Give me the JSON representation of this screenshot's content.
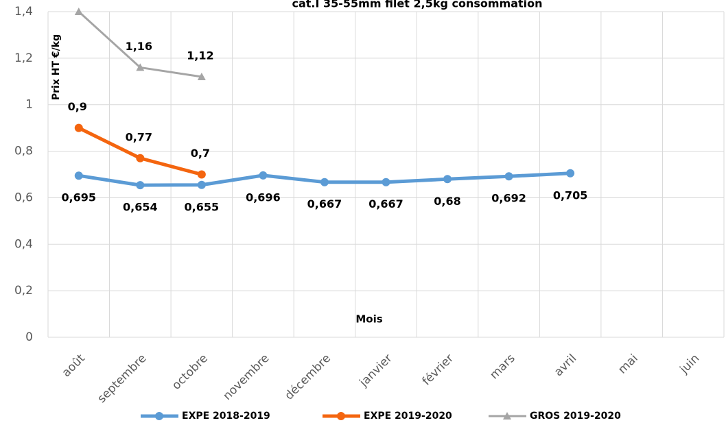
{
  "chart_data": {
    "type": "line",
    "title": "cat.I 35-55mm filet 2,5kg consommation",
    "y_label": "Prix HT €/kg",
    "x_label": "Mois",
    "categories": [
      "août",
      "septembre",
      "octobre",
      "novembre",
      "décembre",
      "janvier",
      "février",
      "mars",
      "avril",
      "mai",
      "juin"
    ],
    "series": [
      {
        "name": "EXPE 2018-2019",
        "color": "#5b9bd5",
        "marker": "circle",
        "values": [
          0.695,
          0.654,
          0.655,
          0.696,
          0.667,
          0.667,
          0.68,
          0.692,
          0.705,
          null,
          null
        ],
        "value_labels": [
          "0,695",
          "0,654",
          "0,655",
          "0,696",
          "0,667",
          "0,667",
          "0,68",
          "0,692",
          "0,705",
          null,
          null
        ]
      },
      {
        "name": "EXPE 2019-2020",
        "color": "#f4650f",
        "marker": "circle",
        "values": [
          0.9,
          0.77,
          0.7,
          null,
          null,
          null,
          null,
          null,
          null,
          null,
          null
        ],
        "value_labels": [
          "0,9",
          "0,77",
          "0,7",
          null,
          null,
          null,
          null,
          null,
          null,
          null,
          null
        ]
      },
      {
        "name": "GROS 2019-2020",
        "color": "#a5a5a5",
        "marker": "triangle",
        "values": [
          1.4,
          1.16,
          1.12,
          null,
          null,
          null,
          null,
          null,
          null,
          null,
          null
        ],
        "value_labels": [
          null,
          "1,16",
          "1,12",
          null,
          null,
          null,
          null,
          null,
          null,
          null,
          null
        ]
      }
    ],
    "ylim": [
      0,
      1.4
    ],
    "yticks": [
      0,
      {
        "value": 0.2,
        "label": "0,2"
      },
      {
        "value": 0.4,
        "label": "0,4"
      },
      {
        "value": 0.6,
        "label": "0,6"
      },
      {
        "value": 0.8,
        "label": "0,8"
      },
      1,
      {
        "value": 1.2,
        "label": "1,2"
      },
      {
        "value": 1.4,
        "label": "1,4"
      }
    ],
    "grid": true,
    "legend": "bottom"
  }
}
